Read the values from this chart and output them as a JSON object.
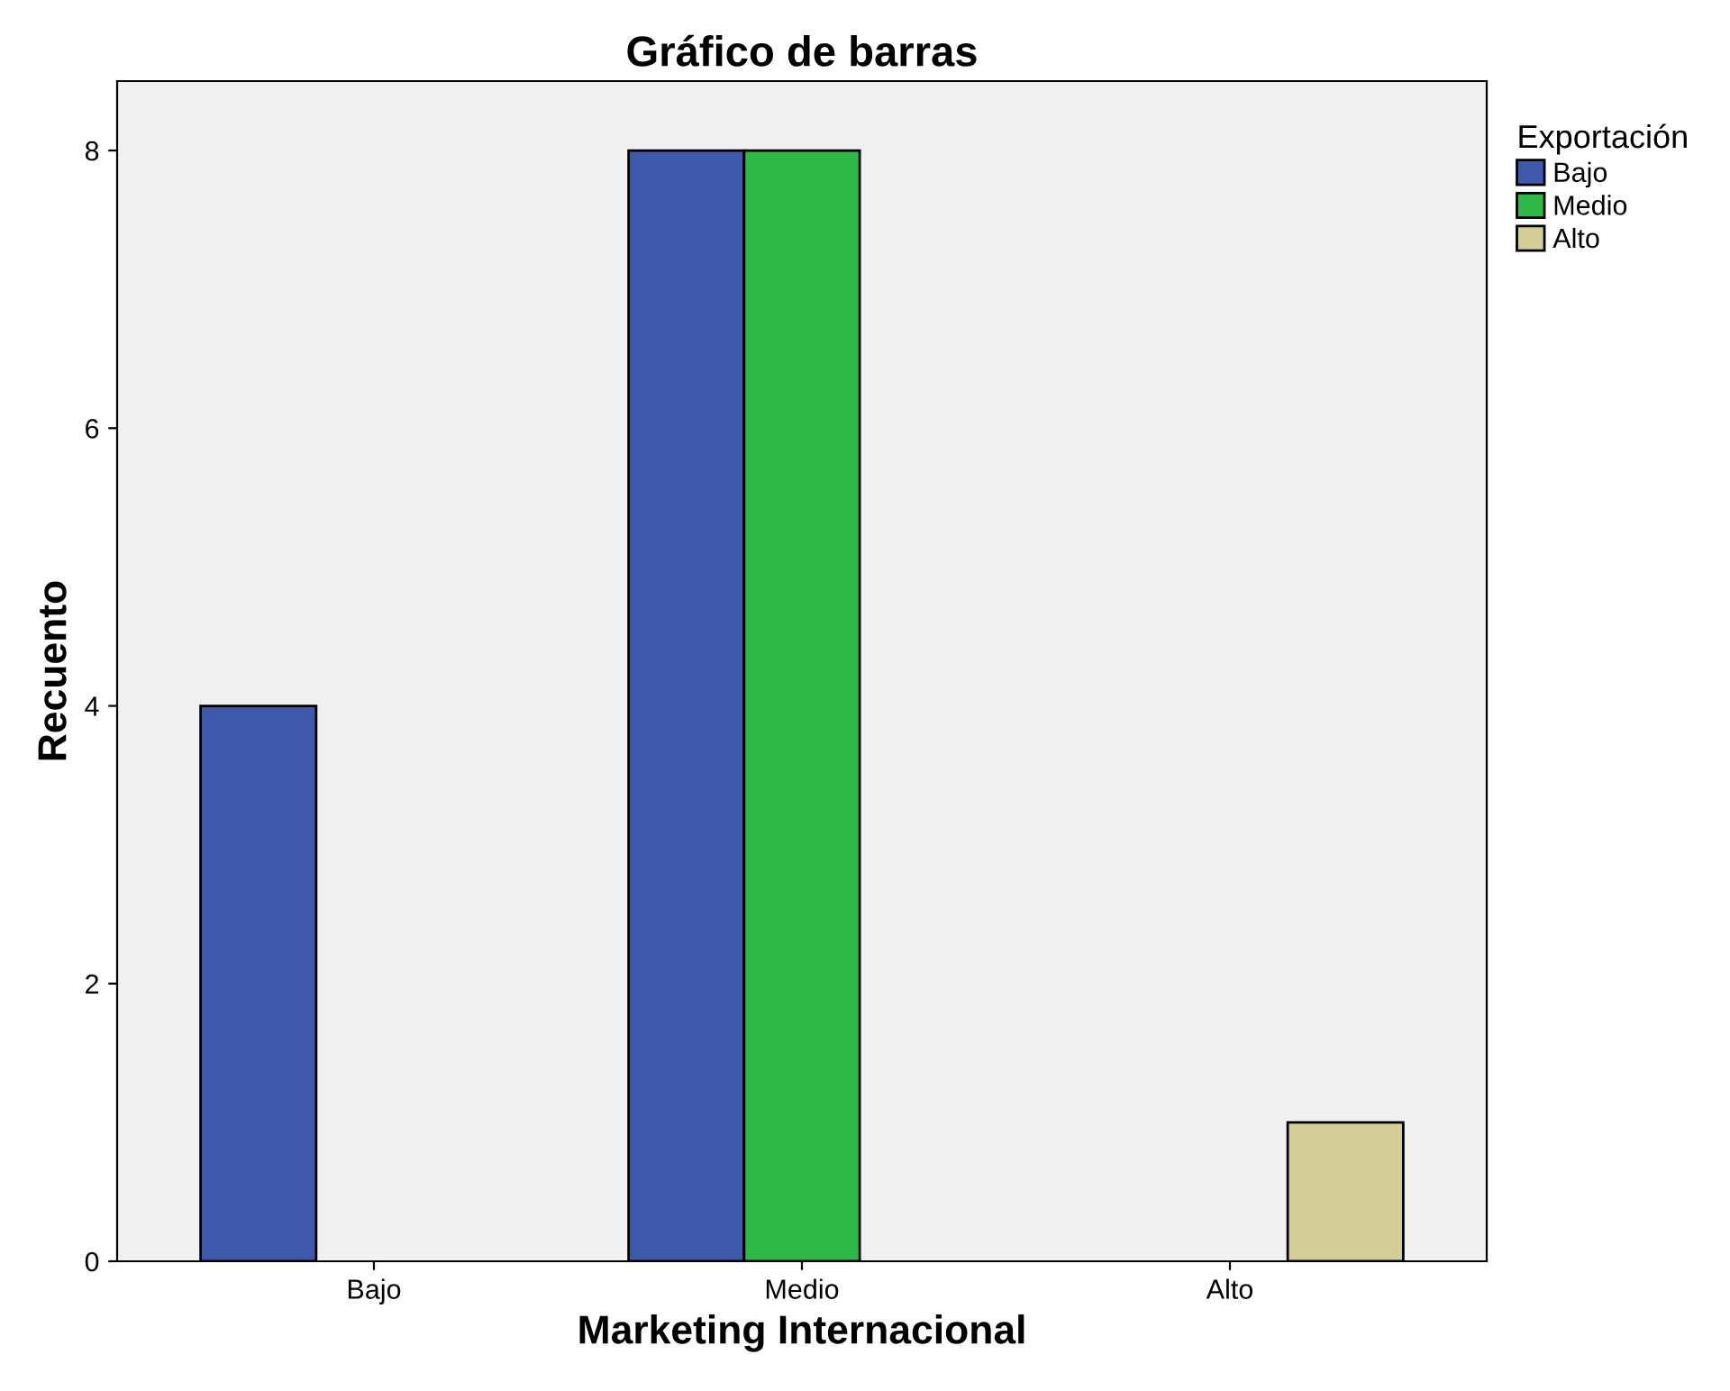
{
  "chart_data": {
    "type": "bar",
    "title": "Gráfico de barras",
    "xlabel": "Marketing Internacional",
    "ylabel": "Recuento",
    "legend_title": "Exportación",
    "categories": [
      "Bajo",
      "Medio",
      "Alto"
    ],
    "series": [
      {
        "name": "Bajo",
        "color": "#3e58ac",
        "values": [
          4,
          8,
          null
        ]
      },
      {
        "name": "Medio",
        "color": "#2eb848",
        "values": [
          null,
          8,
          null
        ]
      },
      {
        "name": "Alto",
        "color": "#d3ce97",
        "values": [
          null,
          null,
          1
        ]
      }
    ],
    "ylim": [
      0,
      8.5
    ],
    "yticks": [
      0,
      2,
      4,
      6,
      8
    ],
    "grid": false,
    "legend": "top right"
  }
}
